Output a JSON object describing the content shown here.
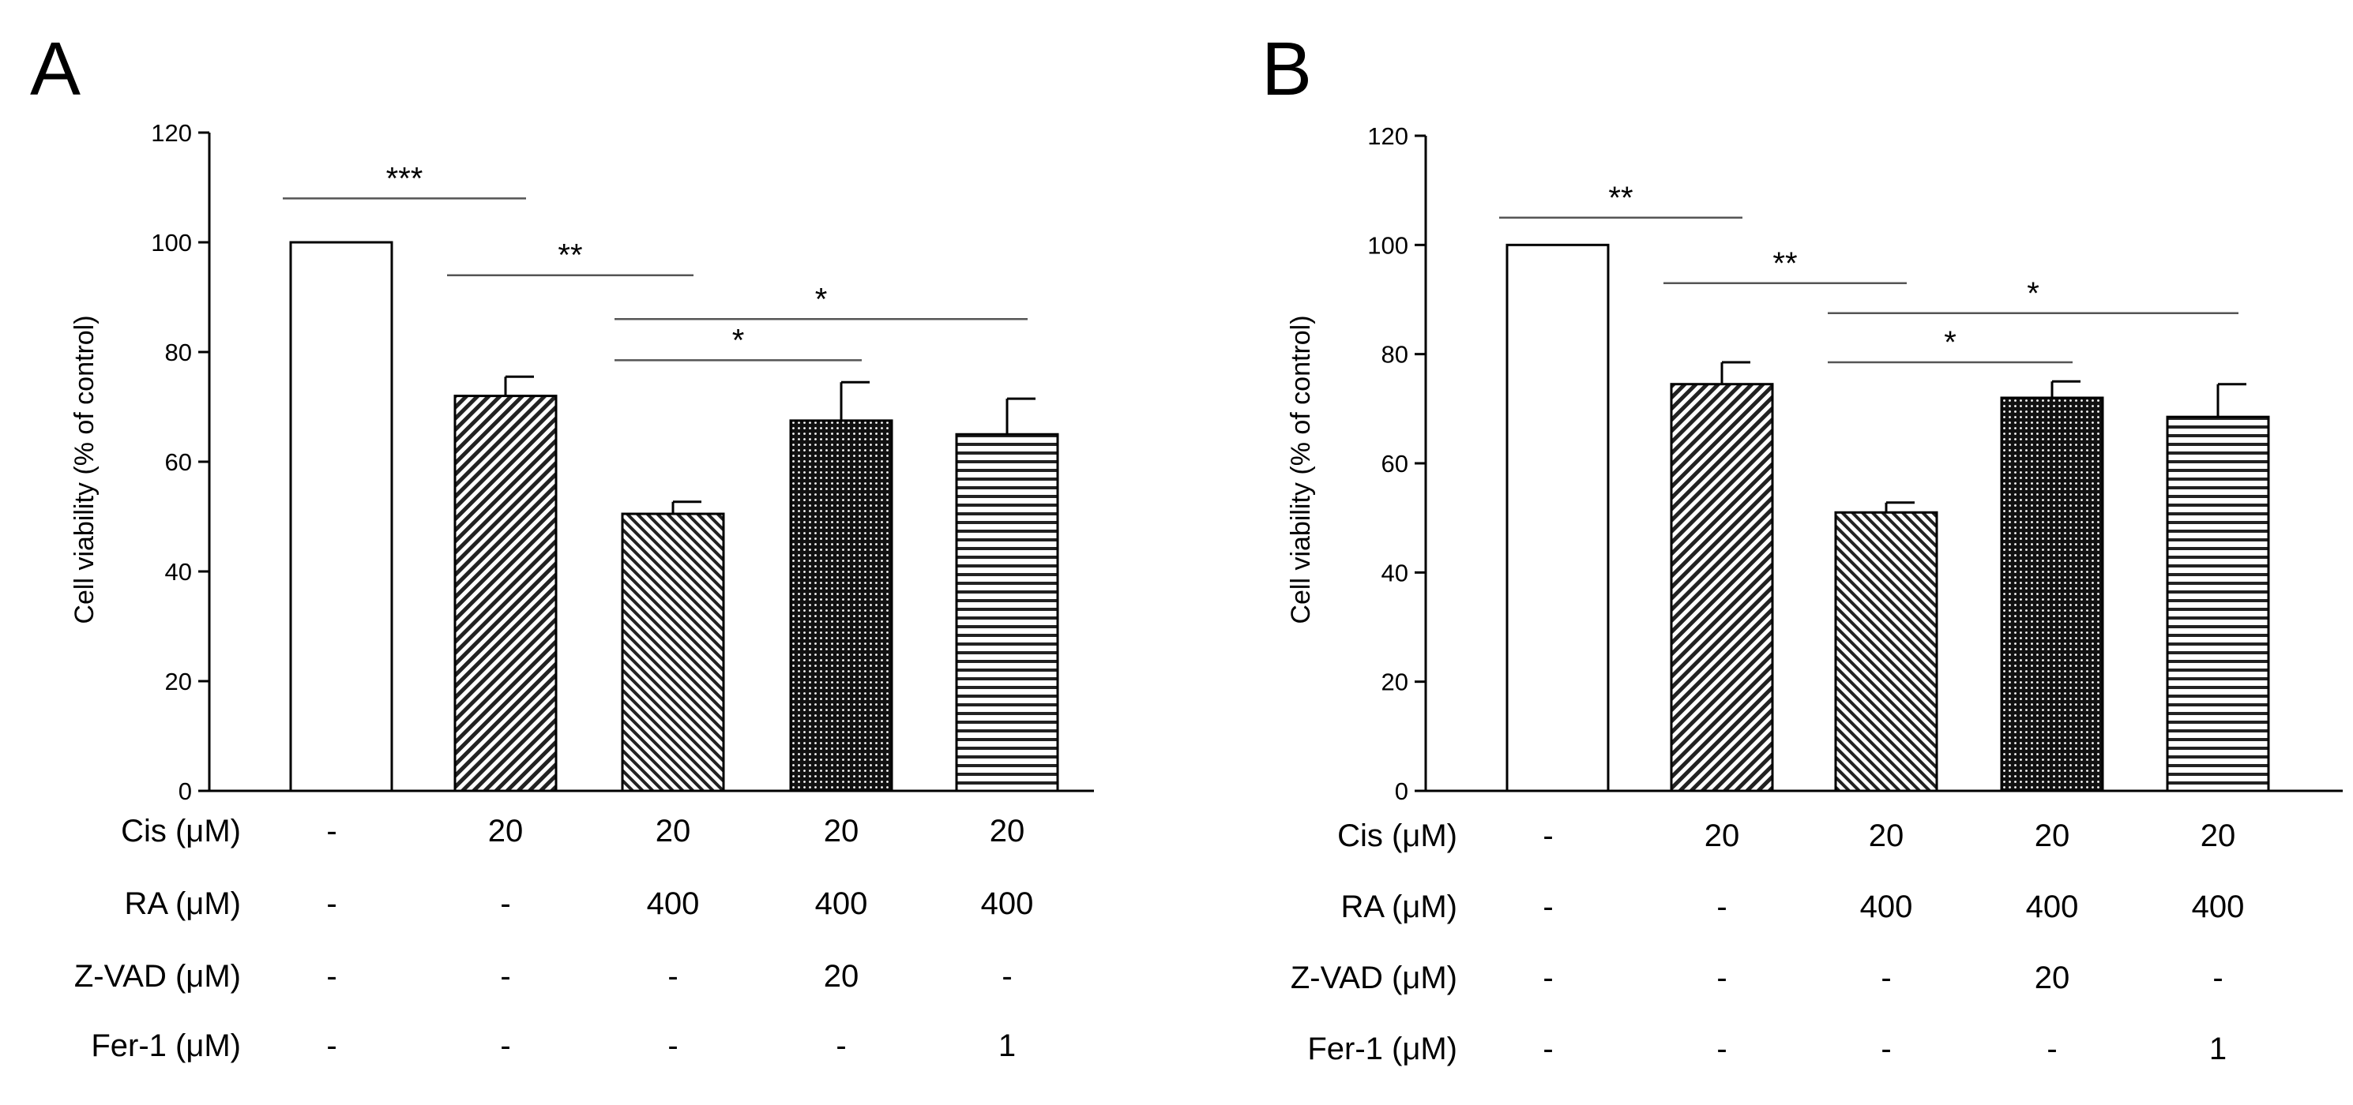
{
  "chart_data": [
    {
      "type": "bar",
      "panel_label": "A",
      "ylabel": "Cell viability (% of control)",
      "ylim": [
        0,
        120
      ],
      "yticks": [
        "0",
        "20",
        "40",
        "60",
        "80",
        "100",
        "120"
      ],
      "series": [
        {
          "name": "Cell viability",
          "values": [
            100,
            72,
            50.5,
            67.5,
            65
          ],
          "errors": [
            0,
            3.5,
            2.2,
            7,
            6.5
          ]
        }
      ],
      "bar_patterns": [
        "solid",
        "diag-right-dense",
        "diag-left-dense",
        "dots-dense",
        "horizontal-lines"
      ],
      "significance": [
        {
          "from": 0,
          "to": 1,
          "y": 108,
          "label": "***"
        },
        {
          "from": 1,
          "to": 2,
          "y": 94,
          "label": "**"
        },
        {
          "from": 2,
          "to": 3,
          "y": 78.5,
          "label": "*"
        },
        {
          "from": 2,
          "to": 4,
          "y": 86,
          "label": "*"
        }
      ],
      "treatments": [
        {
          "label": "Cis (μM)",
          "values": [
            "-",
            "20",
            "20",
            "20",
            "20"
          ]
        },
        {
          "label": "RA (μM)",
          "values": [
            "-",
            "-",
            "400",
            "400",
            "400"
          ]
        },
        {
          "label": "Z-VAD (μM)",
          "values": [
            "-",
            "-",
            "-",
            "20",
            "-"
          ]
        },
        {
          "label": "Fer-1 (μM)",
          "values": [
            "-",
            "-",
            "-",
            "-",
            "1"
          ]
        }
      ]
    },
    {
      "type": "bar",
      "panel_label": "B",
      "ylabel": "Cell viability (% of control)",
      "ylim": [
        0,
        120
      ],
      "yticks": [
        "0",
        "20",
        "40",
        "60",
        "80",
        "100",
        "120"
      ],
      "series": [
        {
          "name": "Cell viability",
          "values": [
            100,
            74.5,
            51,
            72,
            68.5
          ],
          "errors": [
            0,
            4,
            1.8,
            3,
            6
          ]
        }
      ],
      "bar_patterns": [
        "solid",
        "diag-right-dense",
        "diag-left-dense",
        "dots-dense",
        "horizontal-lines"
      ],
      "significance": [
        {
          "from": 0,
          "to": 1,
          "y": 105,
          "label": "**"
        },
        {
          "from": 1,
          "to": 2,
          "y": 93,
          "label": "**"
        },
        {
          "from": 2,
          "to": 3,
          "y": 78.5,
          "label": "*"
        },
        {
          "from": 2,
          "to": 4,
          "y": 87.5,
          "label": "*"
        }
      ],
      "treatments": [
        {
          "label": "Cis (μM)",
          "values": [
            "-",
            "20",
            "20",
            "20",
            "20"
          ]
        },
        {
          "label": "RA (μM)",
          "values": [
            "-",
            "-",
            "400",
            "400",
            "400"
          ]
        },
        {
          "label": "Z-VAD (μM)",
          "values": [
            "-",
            "-",
            "-",
            "20",
            "-"
          ]
        },
        {
          "label": "Fer-1 (μM)",
          "values": [
            "-",
            "-",
            "-",
            "-",
            "1"
          ]
        }
      ]
    }
  ]
}
